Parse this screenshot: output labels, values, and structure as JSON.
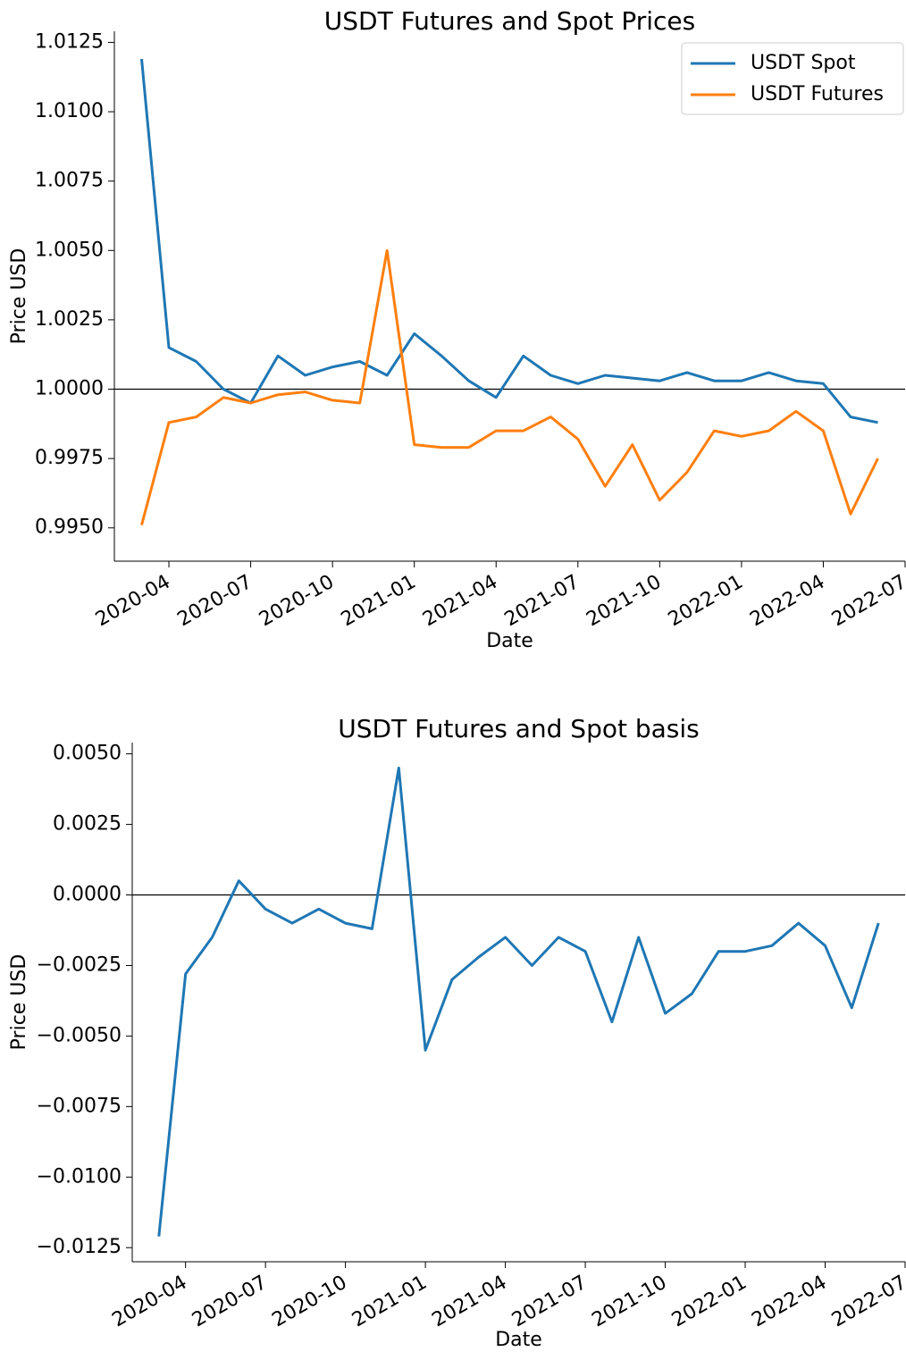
{
  "chart_data": [
    {
      "type": "line",
      "title": "USDT Futures and Spot Prices",
      "xlabel": "Date",
      "ylabel": "Price USD",
      "x": [
        "2020-03",
        "2020-04",
        "2020-05",
        "2020-06",
        "2020-07",
        "2020-08",
        "2020-09",
        "2020-10",
        "2020-11",
        "2020-12",
        "2021-01",
        "2021-02",
        "2021-03",
        "2021-04",
        "2021-05",
        "2021-06",
        "2021-07",
        "2021-08",
        "2021-09",
        "2021-10",
        "2021-11",
        "2021-12",
        "2022-01",
        "2022-02",
        "2022-03",
        "2022-04",
        "2022-05",
        "2022-06"
      ],
      "series": [
        {
          "name": "USDT Spot",
          "color": "#1f77b4",
          "values": [
            1.0119,
            1.0015,
            1.001,
            1.0,
            0.9995,
            1.0012,
            1.0005,
            1.0008,
            1.001,
            1.0005,
            1.002,
            1.0012,
            1.0003,
            0.9997,
            1.0012,
            1.0005,
            1.0002,
            1.0005,
            1.0004,
            1.0003,
            1.0006,
            1.0003,
            1.0003,
            1.0006,
            1.0003,
            1.0002,
            0.999,
            0.9988
          ]
        },
        {
          "name": "USDT Futures",
          "color": "#ff7f0e",
          "values": [
            0.9951,
            0.9988,
            0.999,
            0.9997,
            0.9995,
            0.9998,
            0.9999,
            0.9996,
            0.9995,
            1.005,
            0.998,
            0.9979,
            0.9979,
            0.9985,
            0.9985,
            0.999,
            0.9982,
            0.9965,
            0.998,
            0.996,
            0.997,
            0.9985,
            0.9983,
            0.9985,
            0.9992,
            0.9985,
            0.9955,
            0.9975
          ]
        }
      ],
      "xlim": [
        "2020-02",
        "2022-07"
      ],
      "xticks": [
        "2020-04",
        "2020-07",
        "2020-10",
        "2021-01",
        "2021-04",
        "2021-07",
        "2021-10",
        "2022-01",
        "2022-04",
        "2022-07"
      ],
      "ylim": [
        0.9938,
        1.0129
      ],
      "yticks": [
        {
          "value": 0.995,
          "label": "0.9950"
        },
        {
          "value": 0.9975,
          "label": "0.9975"
        },
        {
          "value": 1.0,
          "label": "1.0000"
        },
        {
          "value": 1.0025,
          "label": "1.0025"
        },
        {
          "value": 1.005,
          "label": "1.0050"
        },
        {
          "value": 1.0075,
          "label": "1.0075"
        },
        {
          "value": 1.01,
          "label": "1.0100"
        },
        {
          "value": 1.0125,
          "label": "1.0125"
        }
      ],
      "reference_line": 1.0,
      "legend": "upper right"
    },
    {
      "type": "line",
      "title": "USDT Futures and Spot basis",
      "xlabel": "Date",
      "ylabel": "Price USD",
      "x": [
        "2020-03",
        "2020-04",
        "2020-05",
        "2020-06",
        "2020-07",
        "2020-08",
        "2020-09",
        "2020-10",
        "2020-11",
        "2020-12",
        "2021-01",
        "2021-02",
        "2021-03",
        "2021-04",
        "2021-05",
        "2021-06",
        "2021-07",
        "2021-08",
        "2021-09",
        "2021-10",
        "2021-11",
        "2021-12",
        "2022-01",
        "2022-02",
        "2022-03",
        "2022-04",
        "2022-05",
        "2022-06"
      ],
      "series": [
        {
          "color": "#1f77b4",
          "values": [
            -0.0121,
            -0.0028,
            -0.0015,
            0.0005,
            -0.0005,
            -0.001,
            -0.0005,
            -0.001,
            -0.0012,
            0.0045,
            -0.0055,
            -0.003,
            -0.0022,
            -0.0015,
            -0.0025,
            -0.0015,
            -0.002,
            -0.0045,
            -0.0015,
            -0.0042,
            -0.0035,
            -0.002,
            -0.002,
            -0.0018,
            -0.001,
            -0.0018,
            -0.004,
            -0.001
          ]
        }
      ],
      "xlim": [
        "2020-02",
        "2022-07"
      ],
      "xticks": [
        "2020-04",
        "2020-07",
        "2020-10",
        "2021-01",
        "2021-04",
        "2021-07",
        "2021-10",
        "2022-01",
        "2022-04",
        "2022-07"
      ],
      "ylim": [
        -0.013,
        0.0054
      ],
      "yticks": [
        {
          "value": -0.0125,
          "label": "−0.0125"
        },
        {
          "value": -0.01,
          "label": "−0.0100"
        },
        {
          "value": -0.0075,
          "label": "−0.0075"
        },
        {
          "value": -0.005,
          "label": "−0.0050"
        },
        {
          "value": -0.0025,
          "label": "−0.0025"
        },
        {
          "value": 0,
          "label": "0.0000"
        },
        {
          "value": 0.0025,
          "label": "0.0025"
        },
        {
          "value": 0.005,
          "label": "0.0050"
        }
      ],
      "reference_line": 0
    }
  ]
}
